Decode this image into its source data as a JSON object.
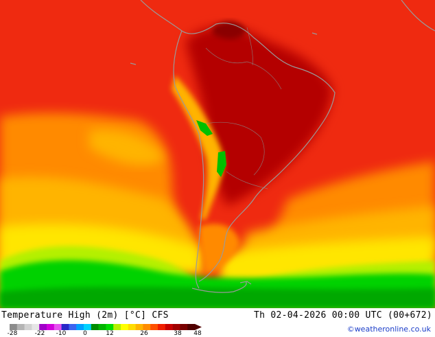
{
  "map": {
    "title": "Temperature High (2m) [°C] CFS",
    "valid_time": "Th 02-04-2026 00:00 UTC (00+672)",
    "credit": "©weatheronline.co.uk",
    "region": "South America"
  },
  "legend": {
    "ticks": [
      "-28",
      "-22",
      "-10",
      "0",
      "12",
      "26",
      "38",
      "48"
    ],
    "colors": [
      "#8c8c8c",
      "#b4b4b4",
      "#d2d2d2",
      "#e6e6e6",
      "#a000c8",
      "#d200dc",
      "#e650f0",
      "#2828c8",
      "#3c64f0",
      "#00a0ff",
      "#00d2ff",
      "#008c00",
      "#00b400",
      "#00dc00",
      "#b4f000",
      "#ffff00",
      "#ffdc00",
      "#ffb400",
      "#ff8c00",
      "#ff5000",
      "#f01e00",
      "#c80000",
      "#a00000",
      "#780000",
      "#500000"
    ]
  }
}
